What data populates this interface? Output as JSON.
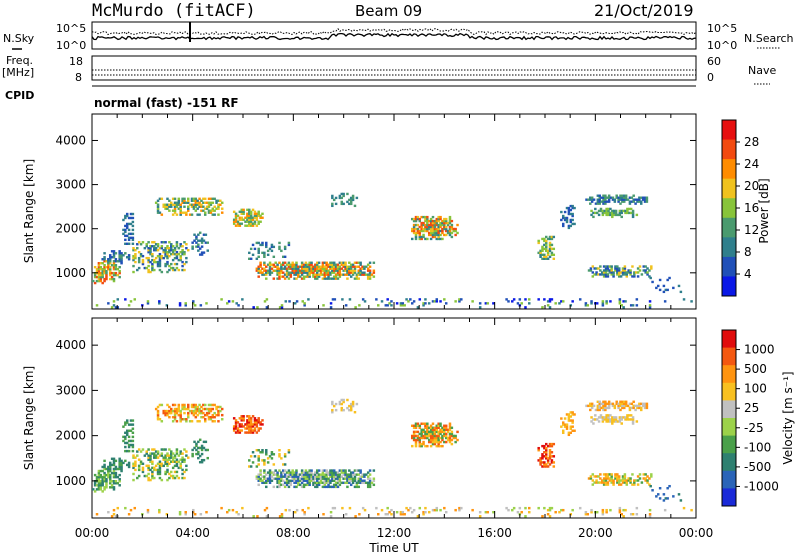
{
  "header": {
    "station": "McMurdo (fitACF)",
    "beam": "Beam 09",
    "date": "21/Oct/2019"
  },
  "top_panels": {
    "left_nsky": "N.Sky",
    "left_freq": "Freq.",
    "left_mhz": "[MHz]",
    "left_cpid": "CPID",
    "right_nsearch": "N.Search",
    "right_nave": "Nave",
    "noise_ticks": [
      "10^5",
      "10^0"
    ],
    "freq_ticks": [
      "18",
      "8"
    ],
    "nave_ticks": [
      "60",
      "0"
    ],
    "cpid_text": "normal (fast) -151 RF"
  },
  "chart_data": [
    {
      "type": "heatmap",
      "name": "power-panel",
      "ylabel": "Slant Range [km]",
      "ylim": [
        180,
        4600
      ],
      "yticks": [
        "1000",
        "2000",
        "3000",
        "4000"
      ],
      "xlim": [
        0,
        24
      ],
      "colorbar_label": "Power [dB]",
      "colorbar_ticks": [
        "4",
        "8",
        "12",
        "16",
        "20",
        "24",
        "28"
      ],
      "colorbar_colors": [
        "#0a18e6",
        "#2050b8",
        "#2f7f8c",
        "#4a9a6e",
        "#88c43a",
        "#f0c21e",
        "#ff8c00",
        "#f24a10",
        "#e60f0f"
      ]
    },
    {
      "type": "heatmap",
      "name": "velocity-panel",
      "ylabel": "Slant Range [km]",
      "ylim": [
        180,
        4600
      ],
      "yticks": [
        "1000",
        "2000",
        "3000",
        "4000"
      ],
      "xlim": [
        0,
        24
      ],
      "colorbar_label": "Velocity [m s⁻¹]",
      "colorbar_ticks": [
        "1000",
        "500",
        "100",
        "25",
        "-25",
        "-100",
        "-500",
        "-1000"
      ],
      "colorbar_colors": [
        "#1a2ad8",
        "#2a64b8",
        "#2e8070",
        "#4aa04a",
        "#9cd24a",
        "#c0c0c0",
        "#f8c020",
        "#ff9410",
        "#f45810",
        "#e00c0c"
      ],
      "xticks": [
        "00:00",
        "04:00",
        "08:00",
        "12:00",
        "16:00",
        "20:00",
        "00:00"
      ],
      "xlabel": "Time UT"
    }
  ]
}
